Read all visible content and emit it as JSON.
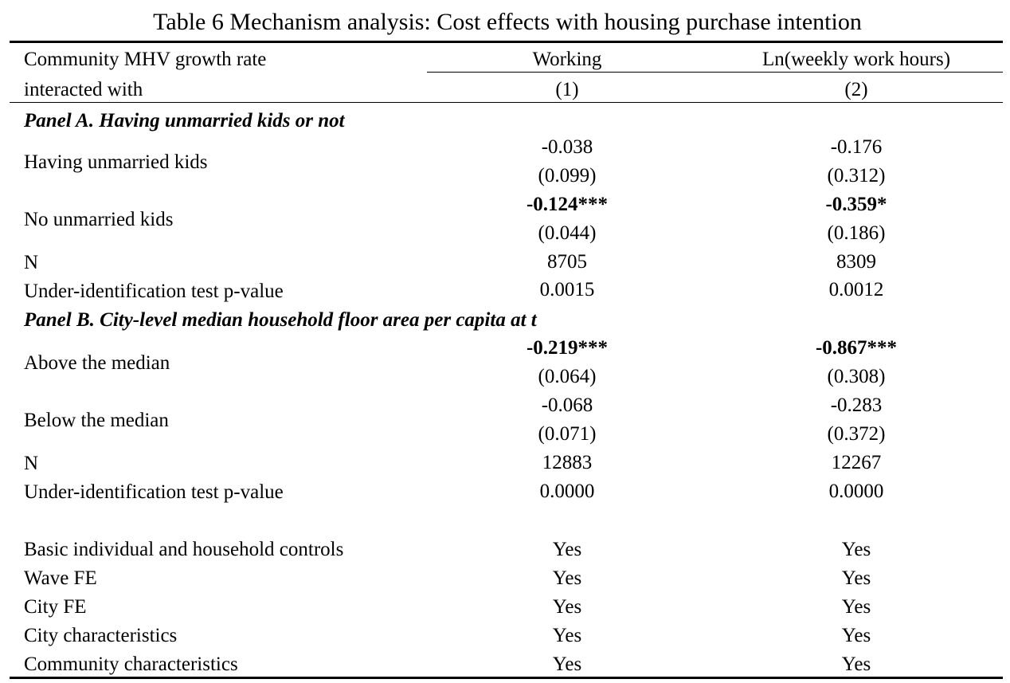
{
  "title": "Table 6 Mechanism analysis: Cost effects with housing purchase intention",
  "header": {
    "row_label_line1": "Community MHV growth rate",
    "row_label_line2": "interacted with",
    "col1_name": "Working",
    "col2_name": "Ln(weekly work hours)",
    "col1_num": "(1)",
    "col2_num": "(2)"
  },
  "panel_a": {
    "title": "Panel A. Having unmarried kids or not",
    "rows": [
      {
        "label": "Having unmarried kids",
        "coef1": "-0.038",
        "se1": "(0.099)",
        "coef2": "-0.176",
        "se2": "(0.312)"
      },
      {
        "label": "No unmarried kids",
        "coef1": "-0.124***",
        "se1": "(0.044)",
        "coef2": "-0.359*",
        "se2": "(0.186)"
      }
    ],
    "n_label": "N",
    "n1": "8705",
    "n2": "8309",
    "pval_label": "Under-identification test p-value",
    "pval1": "0.0015",
    "pval2": "0.0012"
  },
  "panel_b": {
    "title": "Panel B. City-level median household floor area per capita at t",
    "rows": [
      {
        "label": "Above the median",
        "coef1": "-0.219***",
        "se1": "(0.064)",
        "coef2": "-0.867***",
        "se2": "(0.308)"
      },
      {
        "label": "Below the median",
        "coef1": "-0.068",
        "se1": "(0.071)",
        "coef2": "-0.283",
        "se2": "(0.372)"
      }
    ],
    "n_label": "N",
    "n1": "12883",
    "n2": "12267",
    "pval_label": "Under-identification test p-value",
    "pval1": "0.0000",
    "pval2": "0.0000"
  },
  "controls": [
    {
      "label": "Basic individual and household controls",
      "v1": "Yes",
      "v2": "Yes"
    },
    {
      "label": "Wave FE",
      "v1": "Yes",
      "v2": "Yes"
    },
    {
      "label": "City FE",
      "v1": "Yes",
      "v2": "Yes"
    },
    {
      "label": "City characteristics",
      "v1": "Yes",
      "v2": "Yes"
    },
    {
      "label": "Community characteristics",
      "v1": "Yes",
      "v2": "Yes"
    }
  ]
}
